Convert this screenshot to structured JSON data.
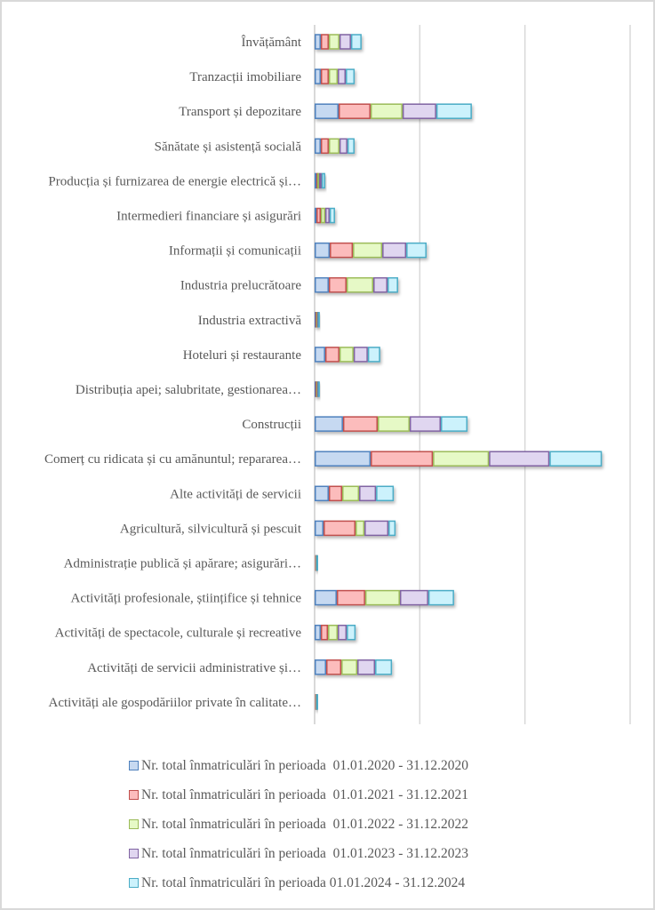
{
  "chart_data": {
    "type": "bar",
    "orientation": "horizontal",
    "stacked": true,
    "title": "",
    "xlabel": "",
    "ylabel": "",
    "xlim": [
      0,
      3000
    ],
    "gridlines": [
      0,
      1000,
      2000,
      3000
    ],
    "grid": true,
    "x_tick_labels_visible": false,
    "values_estimated_relative": true,
    "legend_position": "bottom",
    "categories": [
      "Învățământ",
      "Tranzacții imobiliare",
      "Transport și depozitare",
      "Sănătate și asistență socială",
      "Producția și furnizarea de energie electrică și…",
      "Intermedieri financiare și asigurări",
      "Informații și comunicații",
      "Industria prelucrătoare",
      "Industria extractivă",
      "Hoteluri și restaurante",
      "Distribuția apei; salubritate, gestionarea…",
      "Construcții",
      "Comerț cu ridicata și cu amănuntul; repararea…",
      "Alte activități de servicii",
      "Agricultură, silvicultură și pescuit",
      "Administrație publică și apărare; asigurări…",
      "Activități profesionale, științifice și tehnice",
      "Activități de spectacole, culturale și recreative",
      "Activități de servicii administrative și…",
      "Activități ale gospodăriilor private în calitate…"
    ],
    "series": [
      {
        "name": "Nr. total înmatriculări în perioada  01.01.2020 - 31.12.2020",
        "fill": "#c6d9f1",
        "stroke": "#4f81bd",
        "values": [
          59,
          59,
          228,
          59,
          17,
          17,
          144,
          135,
          8,
          101,
          8,
          270,
          533,
          135,
          85,
          4,
          211,
          59,
          110,
          4
        ]
      },
      {
        "name": "Nr. total înmatriculări în perioada  01.01.2021 - 31.12.2021",
        "fill": "#fcbcbc",
        "stroke": "#c0504d",
        "values": [
          76,
          76,
          304,
          76,
          8,
          42,
          220,
          169,
          8,
          135,
          8,
          330,
          592,
          127,
          304,
          4,
          270,
          68,
          144,
          4
        ]
      },
      {
        "name": "Nr. total înmatriculări în perioada  01.01.2022 - 31.12.2022",
        "fill": "#e6f9c6",
        "stroke": "#9bbb59",
        "values": [
          101,
          85,
          304,
          101,
          17,
          42,
          279,
          254,
          8,
          135,
          8,
          304,
          533,
          161,
          85,
          4,
          330,
          93,
          152,
          4
        ]
      },
      {
        "name": "Nr. total înmatriculări în perioada  01.01.2023 - 31.12.2023",
        "fill": "#e0d6f0",
        "stroke": "#8064a2",
        "values": [
          110,
          76,
          321,
          76,
          25,
          42,
          228,
          135,
          8,
          135,
          8,
          296,
          575,
          161,
          228,
          4,
          270,
          85,
          169,
          4
        ]
      },
      {
        "name": "Nr. total înmatriculări în perioada 01.01.2024 - 31.12.2024",
        "fill": "#ccf2fc",
        "stroke": "#4bacc6",
        "values": [
          101,
          85,
          338,
          68,
          34,
          51,
          194,
          101,
          17,
          118,
          17,
          254,
          499,
          169,
          68,
          8,
          245,
          85,
          161,
          8
        ]
      }
    ]
  },
  "colors": {
    "gridline": "#d9d9d9",
    "axis": "#d9d9d9",
    "label_text": "#595959",
    "border": "#d9d9d9"
  }
}
